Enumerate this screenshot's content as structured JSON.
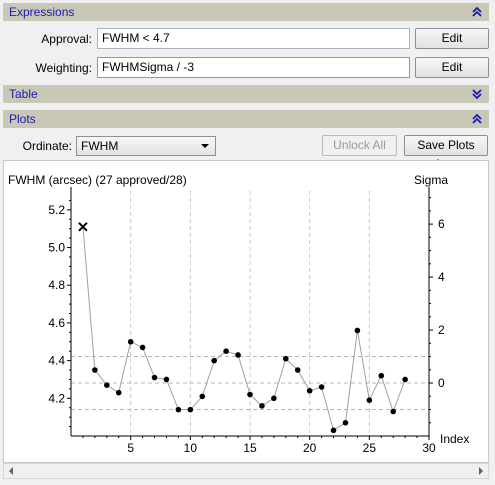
{
  "expressions": {
    "header": "Expressions",
    "approval_label": "Approval:",
    "approval_value": "FWHM < 4.7",
    "weighting_label": "Weighting:",
    "weighting_value": "FWHMSigma / -3",
    "edit_label": "Edit"
  },
  "table": {
    "header": "Table"
  },
  "plots": {
    "header": "Plots",
    "ordinate_label": "Ordinate:",
    "ordinate_value": "FWHM",
    "unlock_label": "Unlock All",
    "save_label": "Save Plots As..."
  },
  "chart_data": {
    "type": "line",
    "title": "FWHM (arcsec) (27 approved/28)",
    "xlabel": "Index",
    "ylabel_right": "Sigma",
    "xlim": [
      0,
      30
    ],
    "ylim": [
      4.0,
      5.3
    ],
    "y2lim": [
      -2.0,
      7.25
    ],
    "x_ticks": [
      5,
      10,
      15,
      20,
      25,
      30
    ],
    "y_ticks": [
      4.2,
      4.4,
      4.6,
      4.8,
      5.0,
      5.2
    ],
    "y2_ticks": [
      0,
      2,
      4,
      6
    ],
    "reference_lines_sigma": [
      -1,
      0,
      1
    ],
    "x_gridlines": [
      5,
      10,
      15,
      20,
      25
    ],
    "rejected": [
      1
    ],
    "series": [
      {
        "x": [
          1,
          2,
          3,
          4,
          5,
          6,
          7,
          8,
          9,
          10,
          11,
          12,
          13,
          14,
          15,
          16,
          17,
          18,
          19,
          20,
          21,
          22,
          23,
          24,
          25,
          26,
          27,
          28
        ],
        "values": [
          5.11,
          4.35,
          4.27,
          4.23,
          4.5,
          4.47,
          4.31,
          4.3,
          4.14,
          4.14,
          4.21,
          4.4,
          4.45,
          4.43,
          4.22,
          4.16,
          4.2,
          4.41,
          4.35,
          4.24,
          4.26,
          4.03,
          4.07,
          4.56,
          4.19,
          4.32,
          4.13,
          4.3
        ]
      }
    ]
  }
}
